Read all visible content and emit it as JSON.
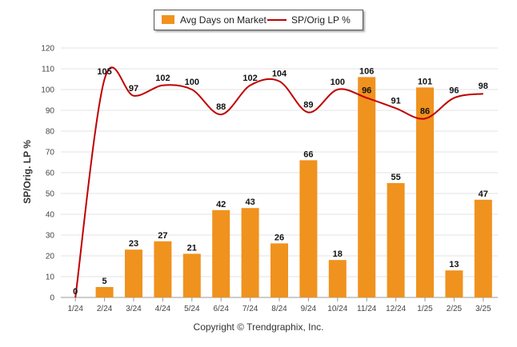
{
  "chart_data": {
    "type": "bar",
    "categories": [
      "1/24",
      "2/24",
      "3/24",
      "4/24",
      "5/24",
      "6/24",
      "7/24",
      "8/24",
      "9/24",
      "10/24",
      "11/24",
      "12/24",
      "1/25",
      "2/25",
      "3/25"
    ],
    "series": [
      {
        "name": "Avg Days on Market",
        "type": "bar",
        "color": "#f0921e",
        "values": [
          0,
          5,
          23,
          27,
          21,
          42,
          43,
          26,
          66,
          18,
          106,
          55,
          101,
          13,
          47
        ]
      },
      {
        "name": "SP/Orig LP %",
        "type": "line",
        "color": "#c00000",
        "values": [
          0,
          105,
          97,
          102,
          100,
          88,
          102,
          104,
          89,
          100,
          96,
          91,
          86,
          96,
          98
        ]
      }
    ],
    "ylabel": "SP/Orig. LP %",
    "ylim": [
      0,
      120
    ],
    "yticks": [
      0,
      10,
      20,
      30,
      40,
      50,
      60,
      70,
      80,
      90,
      100,
      110,
      120
    ],
    "grid": true,
    "legend_position": "top-center"
  },
  "footer": {
    "copyright": "Copyright © Trendgraphix, Inc."
  }
}
